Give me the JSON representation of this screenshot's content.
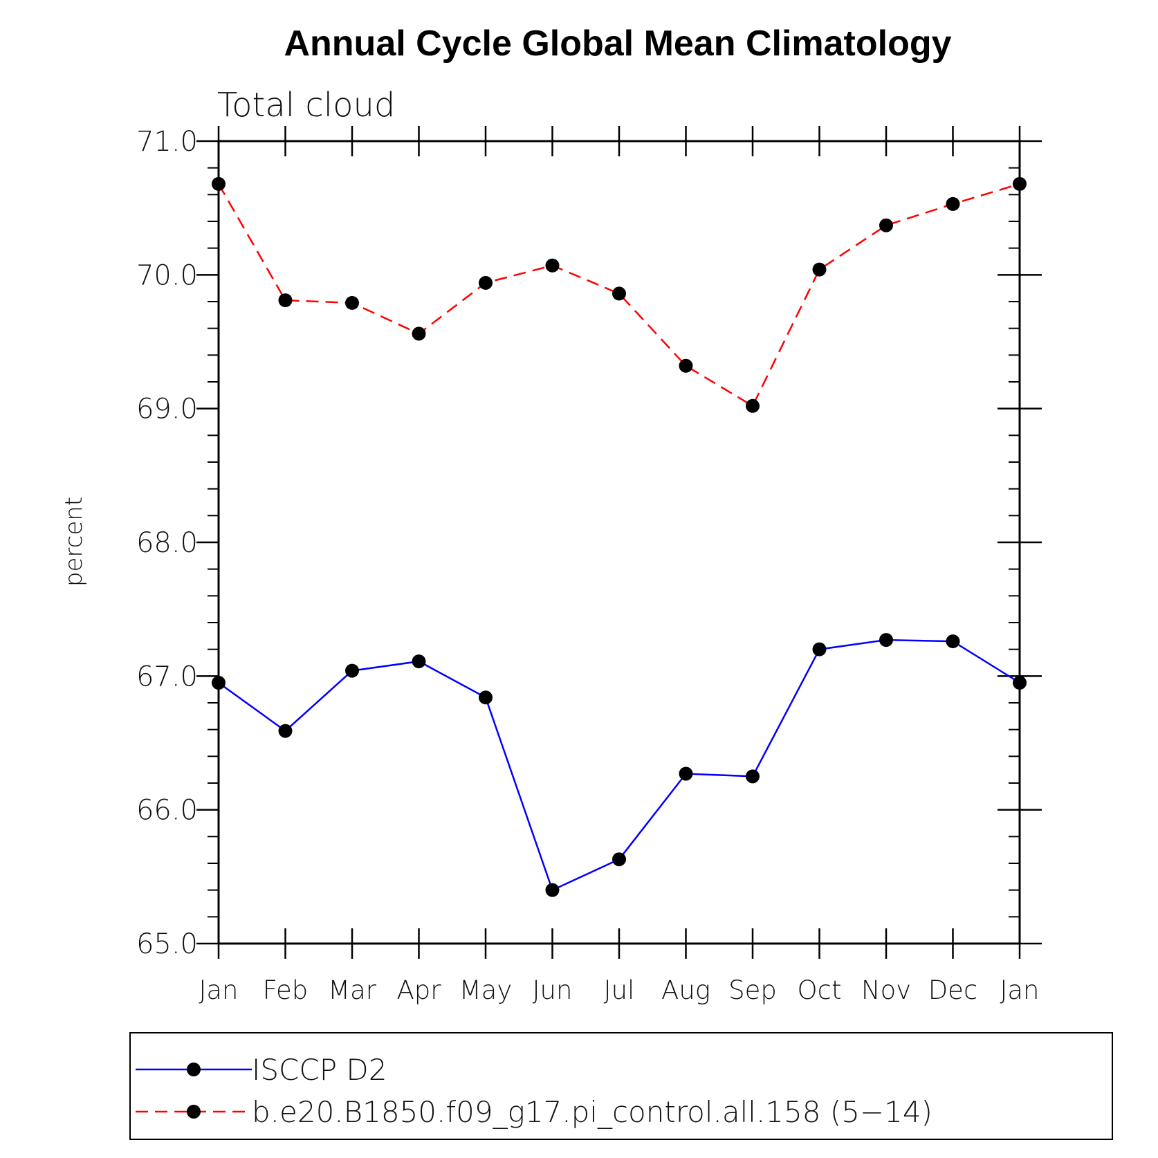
{
  "chart_data": {
    "type": "line",
    "title": "Annual Cycle Global Mean Climatology",
    "subtitle": "Total cloud",
    "xlabel": "",
    "ylabel": "percent",
    "categories": [
      "Jan",
      "Feb",
      "Mar",
      "Apr",
      "May",
      "Jun",
      "Jul",
      "Aug",
      "Sep",
      "Oct",
      "Nov",
      "Dec",
      "Jan"
    ],
    "ylim": [
      65.0,
      71.0
    ],
    "yticks": [
      "65.0",
      "66.0",
      "67.0",
      "68.0",
      "69.0",
      "70.0",
      "71.0"
    ],
    "grid": false,
    "legend_position": "bottom",
    "series": [
      {
        "name": "ISCCP D2",
        "color": "#0000ff",
        "dash": "solid",
        "marker": "circle",
        "values": [
          66.95,
          66.59,
          67.04,
          67.11,
          66.84,
          65.4,
          65.63,
          66.27,
          66.25,
          67.2,
          67.27,
          67.26,
          66.95
        ]
      },
      {
        "name": "b.e20.B1850.f09_g17.pi_control.all.158 (5−14)",
        "color": "#ff0000",
        "dash": "dashed",
        "marker": "circle",
        "values": [
          70.68,
          69.81,
          69.79,
          69.56,
          69.94,
          70.07,
          69.86,
          69.32,
          69.02,
          70.04,
          70.37,
          70.53,
          70.68
        ]
      }
    ]
  }
}
